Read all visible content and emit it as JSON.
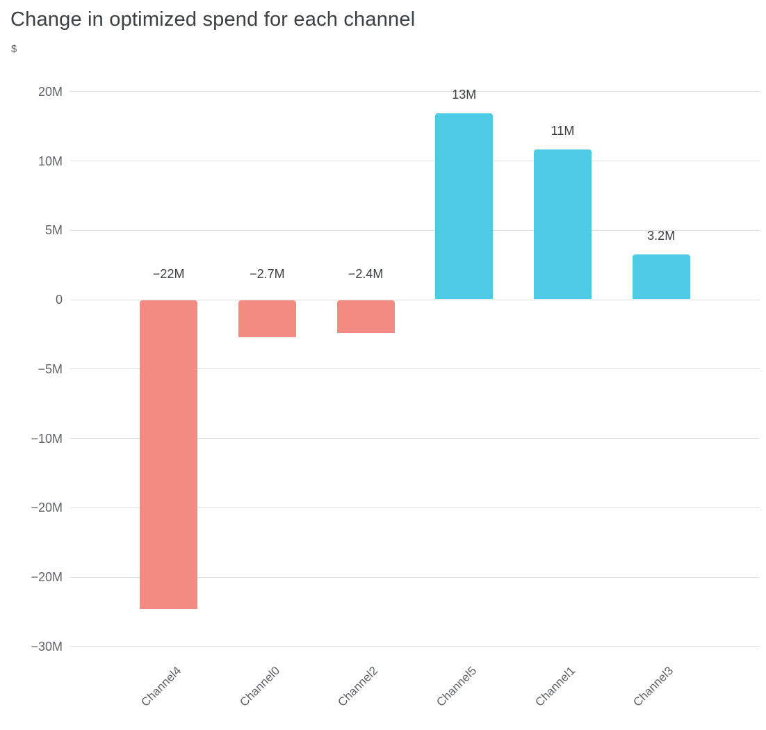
{
  "chart_data": {
    "type": "bar",
    "title": "Change in optimized spend for each channel",
    "ylabel": "$",
    "xlabel": "",
    "legend": "none",
    "grid": "horizontal",
    "categories": [
      "Channel4",
      "Channel0",
      "Channel2",
      "Channel5",
      "Channel1",
      "Channel3"
    ],
    "values_millions": [
      -22.3,
      -2.7,
      -2.4,
      13.4,
      10.8,
      3.2
    ],
    "bar_labels": [
      "−22M",
      "−2.7M",
      "−2.4M",
      "13M",
      "11M",
      "3.2M"
    ],
    "yaxis": {
      "tick_values_millions": [
        15,
        10,
        5,
        0,
        -5,
        -10,
        -15,
        -20,
        -25
      ],
      "tick_labels": [
        "20M",
        "10M",
        "5M",
        "0",
        "−5M",
        "−10M",
        "−20M",
        "−20M",
        "−30M"
      ],
      "range_millions": [
        -27,
        16
      ]
    },
    "colors": {
      "positive_bar": "#4ECAE4",
      "negative_bar": "#F28B82",
      "gridline": "#DCDDE0",
      "title_text": "#3C4043",
      "axis_text": "#5F6368",
      "value_label_text": "#3C4043",
      "background": "#FFFFFF"
    }
  }
}
